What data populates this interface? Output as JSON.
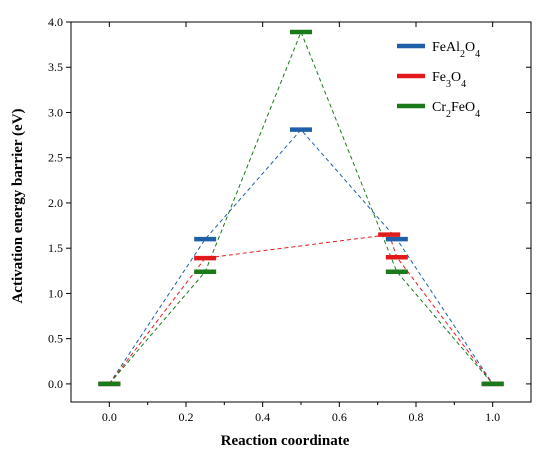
{
  "chart_data": {
    "type": "line",
    "title": "",
    "xlabel": "Reaction coordinate",
    "ylabel": "Activation energy barrier (eV)",
    "xlim": [
      -0.1,
      1.1
    ],
    "ylim": [
      -0.2,
      4.0
    ],
    "x_ticks": [
      "0.0",
      "0.2",
      "0.4",
      "0.6",
      "0.8",
      "1.0"
    ],
    "y_ticks": [
      "0.0",
      "0.5",
      "1.0",
      "1.5",
      "2.0",
      "2.5",
      "3.0",
      "3.5",
      "4.0"
    ],
    "grid": false,
    "legend_position": "top-right",
    "series": [
      {
        "name": "FeAl2O4",
        "color": "#1f5fa8",
        "x": [
          0.0,
          0.25,
          0.5,
          0.75,
          1.0
        ],
        "y": [
          0.0,
          1.6,
          2.81,
          1.6,
          0.0
        ]
      },
      {
        "name": "Fe3O4",
        "color": "#e31a1c",
        "x": [
          0.0,
          0.25,
          0.73,
          0.75,
          1.0
        ],
        "y": [
          0.0,
          1.39,
          1.65,
          1.4,
          0.0
        ]
      },
      {
        "name": "Cr2FeO4",
        "color": "#1a7a1a",
        "x": [
          0.0,
          0.25,
          0.5,
          0.75,
          1.0
        ],
        "y": [
          0.0,
          1.24,
          3.89,
          1.24,
          0.0
        ]
      }
    ]
  }
}
